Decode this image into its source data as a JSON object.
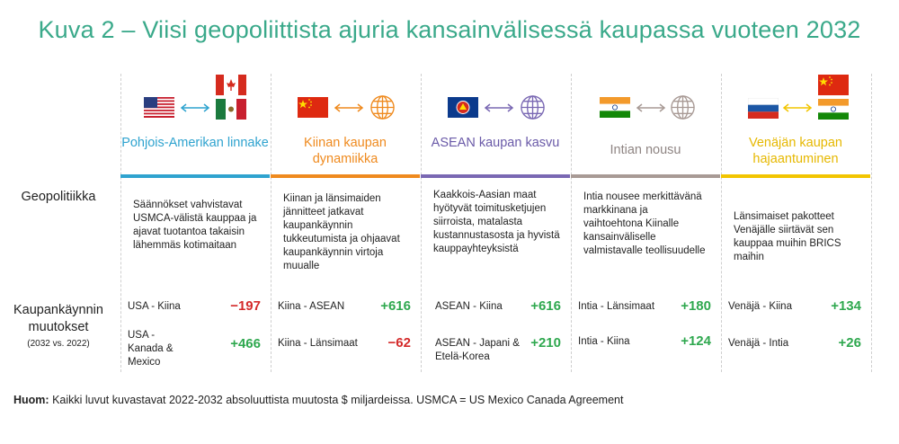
{
  "title": "Kuva 2 – Viisi geopoliittista ajuria kansainvälisessä kaupassa vuoteen 2032",
  "row_labels": {
    "geopolitics": "Geopolitiikka",
    "trade_change": "Kaupankäynnin muutokset",
    "trade_change_sub": "(2032 vs. 2022)"
  },
  "columns": [
    {
      "heading": "Pohjois-Amerikan linnake",
      "color": "#2fa3cf",
      "text_color": "#2fa3cf",
      "flags": [
        "usa-flag",
        "canada-flag",
        "mexico-flag"
      ],
      "description": "Säännökset vahvistavat USMCA-välistä kauppaa ja ajavat tuotantoa takaisin lähemmäs kotimaitaan",
      "trades": [
        {
          "label": "USA - Kiina",
          "value": "−197"
        },
        {
          "label": "USA - Kanada & Mexico",
          "value": "+466"
        }
      ]
    },
    {
      "heading": "Kiinan kaupan dynamiikka",
      "color": "#ef8a1e",
      "text_color": "#ef8a1e",
      "flags": [
        "china-flag",
        "globe-icon"
      ],
      "description": "Kiinan ja länsimaiden jännitteet jatkavat kaupankäynnin tukkeutumista ja ohjaavat kaupankäynnin virtoja muualle",
      "trades": [
        {
          "label": "Kiina - ASEAN",
          "value": "+616"
        },
        {
          "label": "Kiina - Länsimaat",
          "value": "−62"
        }
      ]
    },
    {
      "heading": "ASEAN kaupan kasvu",
      "color": "#7a68b3",
      "text_color": "#6a5aa8",
      "flags": [
        "asean-flag",
        "globe-icon"
      ],
      "description": "Kaakkois-Aasian maat hyötyvät toimitusketjujen siirroista, matalasta kustannustasosta ja hyvistä kauppayhteyksistä",
      "trades": [
        {
          "label": "ASEAN - Kiina",
          "value": "+616"
        },
        {
          "label": "ASEAN - Japani & Etelä-Korea",
          "value": "+210"
        }
      ]
    },
    {
      "heading": "Intian nousu",
      "color": "#a89a95",
      "text_color": "#8f8583",
      "flags": [
        "india-flag",
        "globe-icon"
      ],
      "description": "Intia nousee merkittävänä markkinana ja vaihtoehtona Kiinalle kansainväliselle valmistavalle teollisuudelle",
      "trades": [
        {
          "label": "Intia - Länsimaat",
          "value": "+180"
        },
        {
          "label": "Intia - Kiina",
          "value": "+124"
        }
      ]
    },
    {
      "heading": "Venäjän kaupan hajaantuminen",
      "color": "#f2c500",
      "text_color": "#e6b800",
      "flags": [
        "russia-flag",
        "china-flag",
        "india-flag"
      ],
      "description": "Länsimaiset pakotteet Venäjälle siirtävät sen kauppaa muihin BRICS maihin",
      "trades": [
        {
          "label": "Venäjä - Kiina",
          "value": "+134"
        },
        {
          "label": "Venäjä - Intia",
          "value": "+26"
        }
      ]
    }
  ],
  "note": {
    "label": "Huom:",
    "text": "Kaikki luvut kuvastavat 2022-2032 absoluuttista muutosta $ miljardeissa. USMCA = US Mexico Canada Agreement"
  }
}
